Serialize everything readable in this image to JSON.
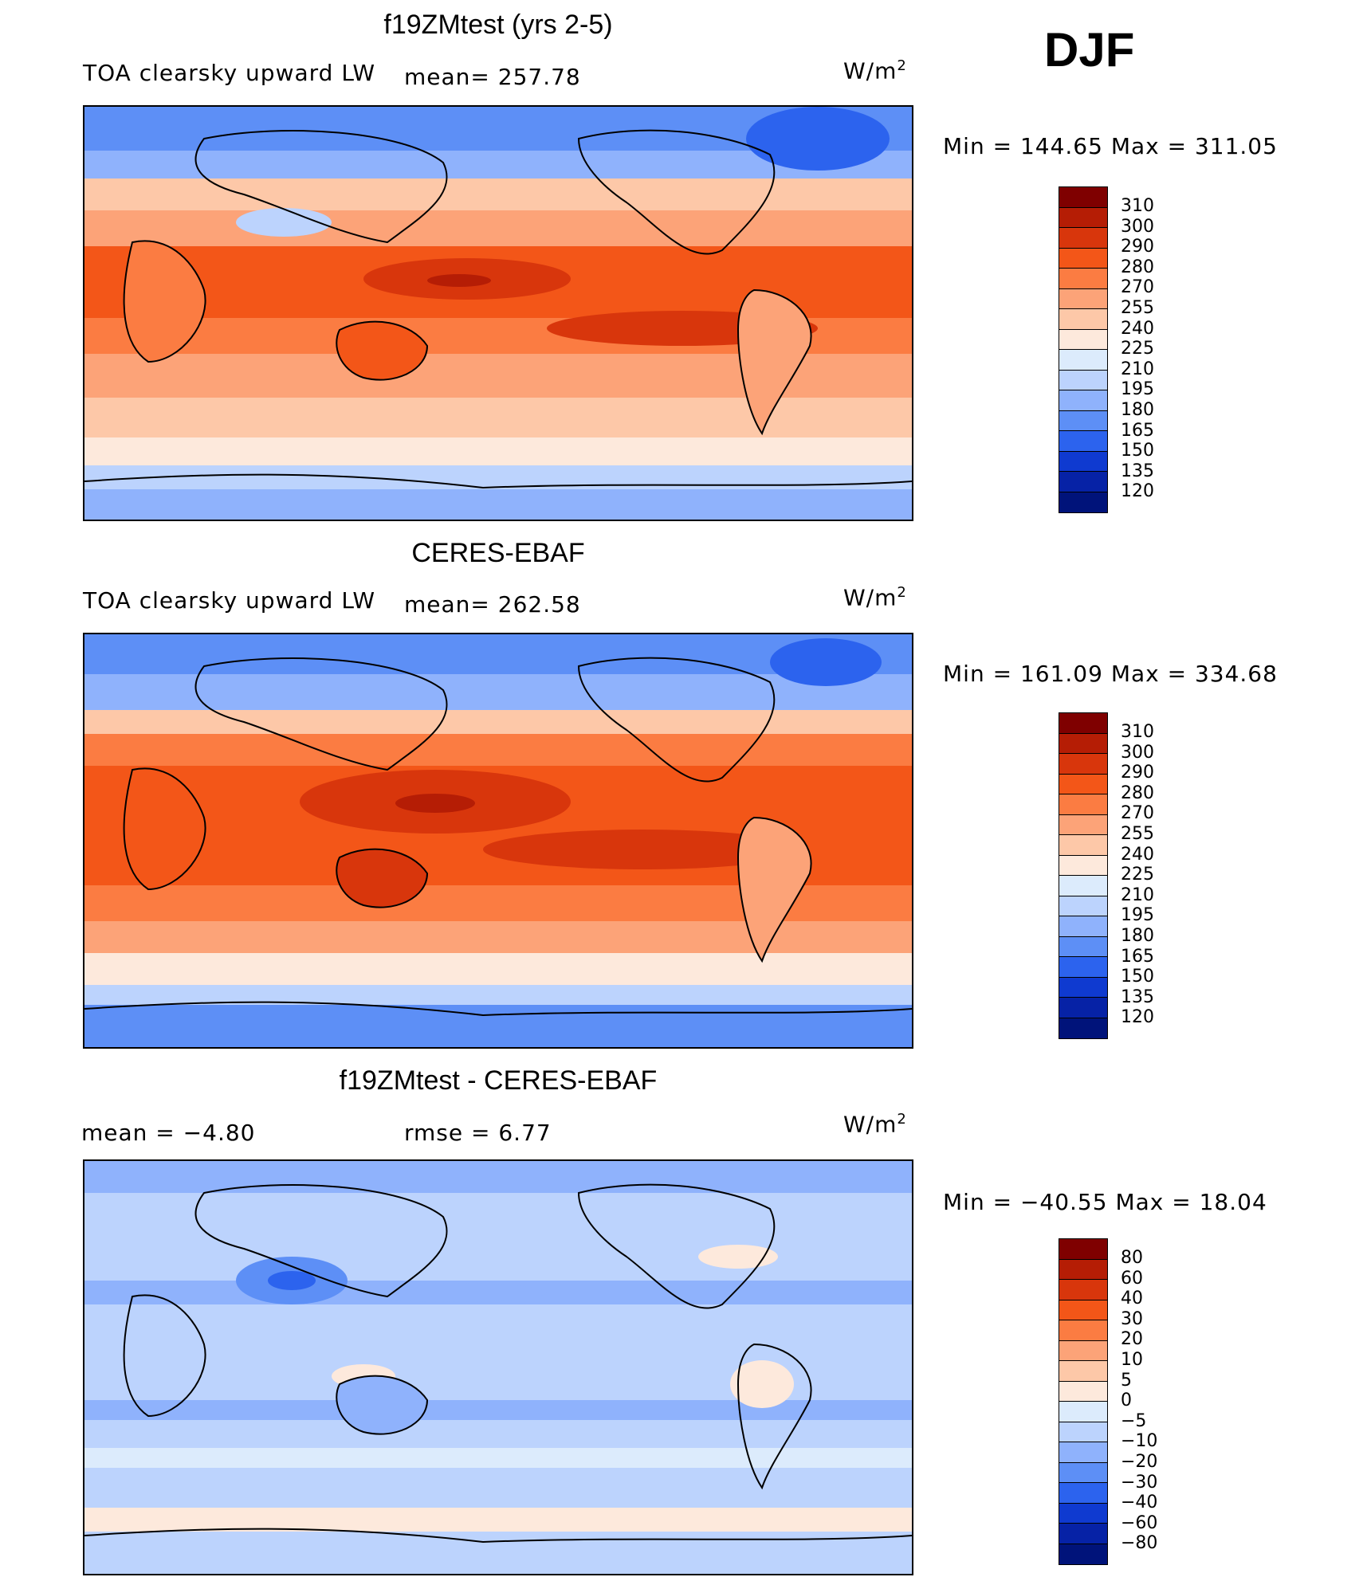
{
  "season_label": "DJF",
  "panels": [
    {
      "title": "f19ZMtest (yrs 2-5)",
      "left_label": "TOA clearsky upward LW",
      "center_label": "mean= 257.78",
      "units": "W/m",
      "units_sup": "2",
      "minmax": "Min  =  144.65  Max  =  311.05",
      "colorbar_ticks": [
        "310",
        "300",
        "290",
        "280",
        "270",
        "255",
        "240",
        "225",
        "210",
        "195",
        "180",
        "165",
        "150",
        "135",
        "120"
      ]
    },
    {
      "title": "CERES-EBAF",
      "left_label": "TOA clearsky upward LW",
      "center_label": "mean= 262.58",
      "units": "W/m",
      "units_sup": "2",
      "minmax": "Min  =  161.09  Max  =  334.68",
      "colorbar_ticks": [
        "310",
        "300",
        "290",
        "280",
        "270",
        "255",
        "240",
        "225",
        "210",
        "195",
        "180",
        "165",
        "150",
        "135",
        "120"
      ]
    },
    {
      "title": "f19ZMtest - CERES-EBAF",
      "left_label": "mean  =    −4.80",
      "center_label": "rmse  =     6.77",
      "units": "W/m",
      "units_sup": "2",
      "minmax": "Min  =  −40.55  Max  =    18.04",
      "colorbar_ticks": [
        "80",
        "60",
        "40",
        "30",
        "20",
        "10",
        "5",
        "0",
        "−5",
        "−10",
        "−20",
        "−30",
        "−40",
        "−60",
        "−80"
      ]
    }
  ],
  "palette": [
    "#7f0000",
    "#b51d05",
    "#d8360c",
    "#f35618",
    "#fb7c42",
    "#fca378",
    "#fdc8a8",
    "#fde9dc",
    "#dcebfc",
    "#bcd3fd",
    "#8fb2fc",
    "#5d8ff6",
    "#2c63ee",
    "#0f3ad0",
    "#0622a6",
    "#00137a"
  ]
}
